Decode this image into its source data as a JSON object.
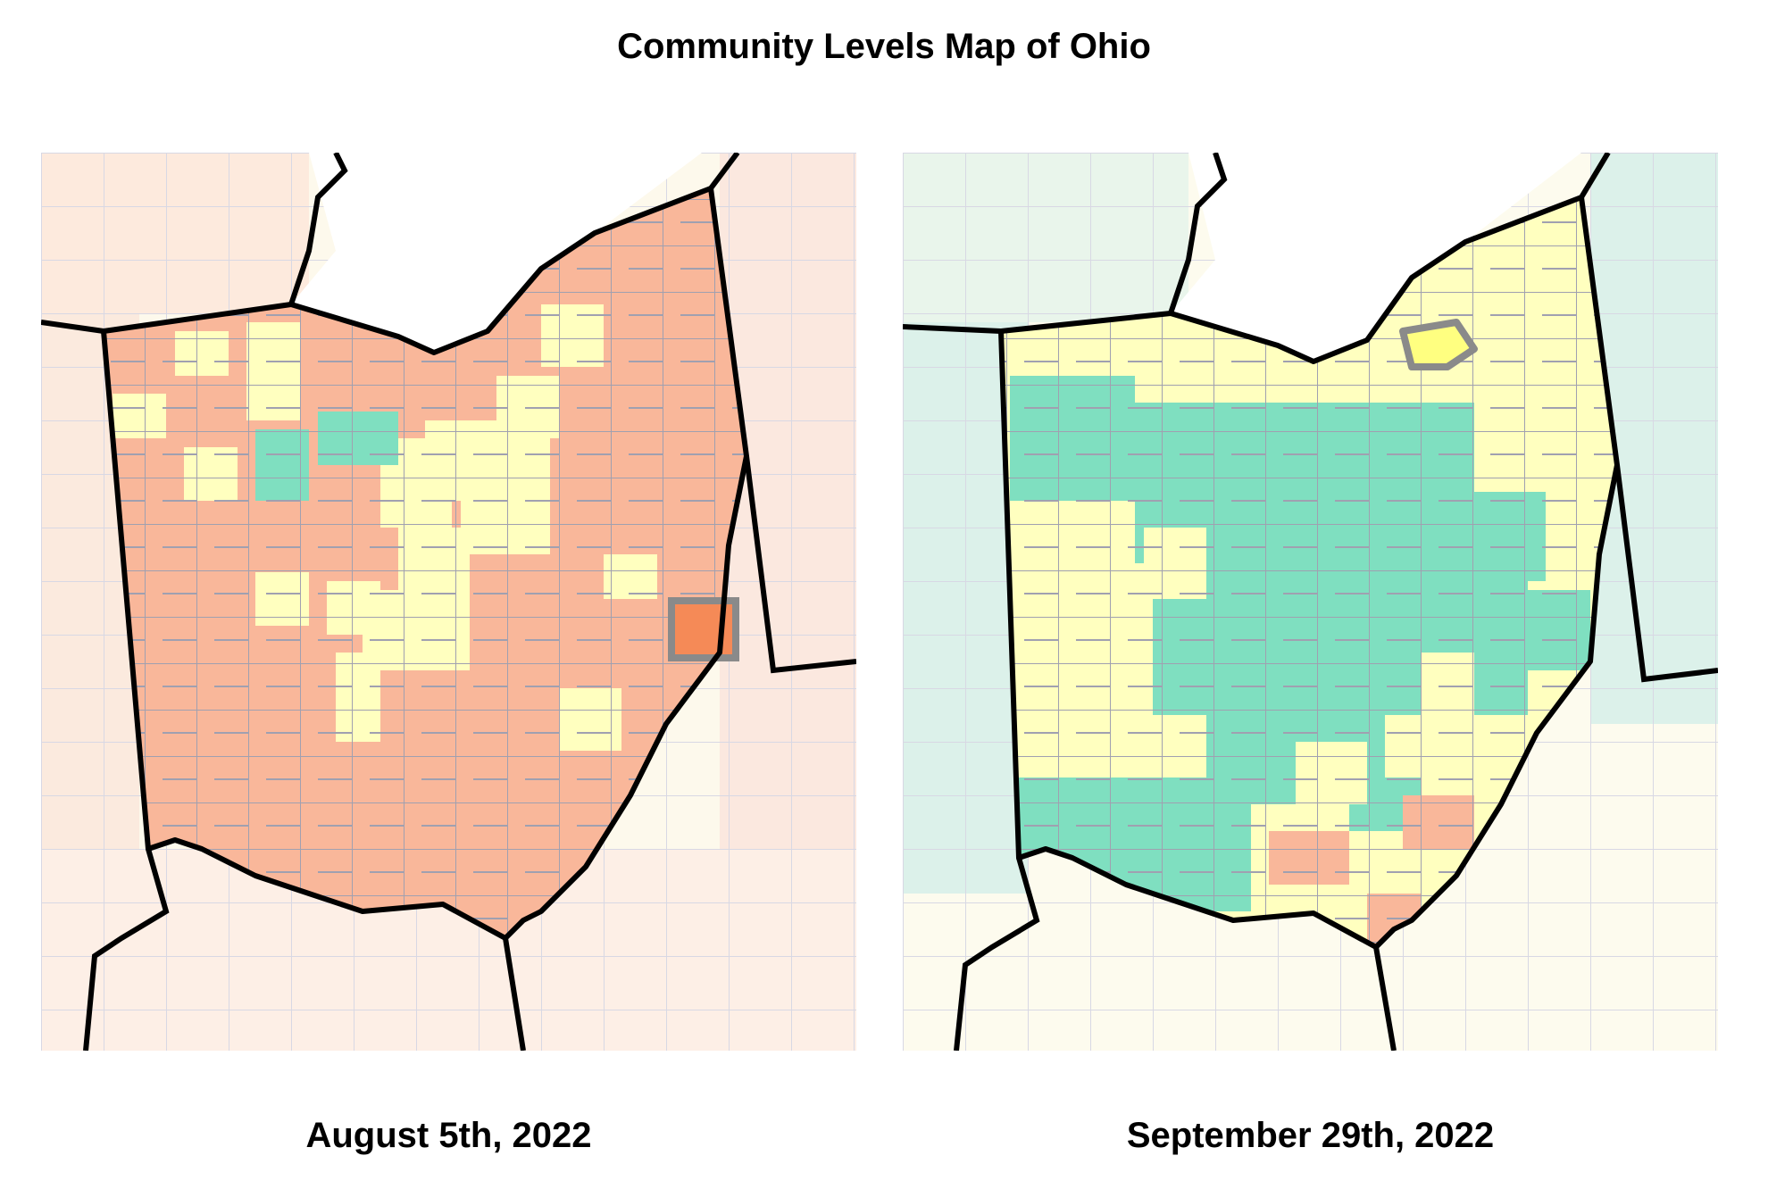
{
  "title": "Community Levels Map of Ohio",
  "legend_colors": {
    "low": "#7fdfc0",
    "medium": "#ffffbf",
    "high": "#f9b79a",
    "highlight_high": "#f58a57"
  },
  "maps": [
    {
      "date_label": "August 5th, 2022",
      "dominant_level": "high",
      "highlight_level": "highlight_high"
    },
    {
      "date_label": "September 29th, 2022",
      "dominant_level": "medium",
      "highlight_level": "medium"
    }
  ]
}
